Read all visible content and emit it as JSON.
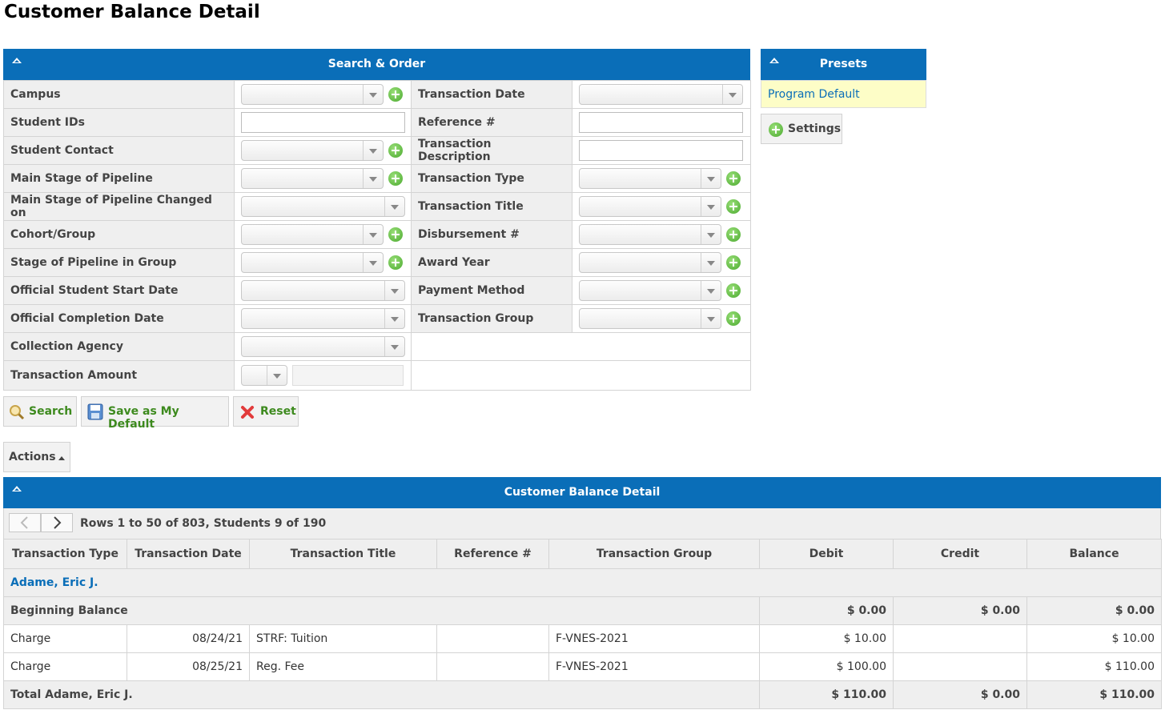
{
  "page": {
    "title": "Customer Balance Detail"
  },
  "search": {
    "header": "Search & Order",
    "left": [
      {
        "label": "Campus",
        "kind": "select-plus"
      },
      {
        "label": "Student IDs",
        "kind": "text"
      },
      {
        "label": "Student Contact",
        "kind": "select-plus"
      },
      {
        "label": "Main Stage of Pipeline",
        "kind": "select-plus"
      },
      {
        "label": "Main Stage of Pipeline Changed on",
        "kind": "select"
      },
      {
        "label": "Cohort/Group",
        "kind": "select-plus"
      },
      {
        "label": "Stage of Pipeline in Group",
        "kind": "select-plus"
      },
      {
        "label": "Official Student Start Date",
        "kind": "select"
      },
      {
        "label": "Official Completion Date",
        "kind": "select"
      },
      {
        "label": "Collection Agency",
        "kind": "select"
      },
      {
        "label": "Transaction Amount",
        "kind": "amount"
      }
    ],
    "right": [
      {
        "label": "Transaction Date",
        "kind": "select"
      },
      {
        "label": "Reference #",
        "kind": "text"
      },
      {
        "label": "Transaction Description",
        "kind": "text"
      },
      {
        "label": "Transaction Type",
        "kind": "select-plus"
      },
      {
        "label": "Transaction Title",
        "kind": "select-plus"
      },
      {
        "label": "Disbursement #",
        "kind": "select-plus"
      },
      {
        "label": "Award Year",
        "kind": "select-plus"
      },
      {
        "label": "Payment Method",
        "kind": "select-plus"
      },
      {
        "label": "Transaction Group",
        "kind": "select-plus"
      }
    ],
    "buttons": {
      "search": "Search",
      "save_default": "Save as My Default",
      "reset": "Reset"
    }
  },
  "presets": {
    "header": "Presets",
    "item": "Program Default",
    "settings": "Settings"
  },
  "actions": {
    "label": "Actions"
  },
  "results": {
    "header": "Customer Balance Detail",
    "pager_text": "Rows 1 to 50 of 803, Students 9 of 190",
    "columns": [
      "Transaction Type",
      "Transaction Date",
      "Transaction Title",
      "Reference #",
      "Transaction Group",
      "Debit",
      "Credit",
      "Balance"
    ],
    "student_name": "Adame, Eric J.",
    "beginning": {
      "label": "Beginning Balance",
      "debit": "$ 0.00",
      "credit": "$ 0.00",
      "balance": "$ 0.00"
    },
    "rows": [
      {
        "type": "Charge",
        "date": "08/24/21",
        "title": "STRF: Tuition",
        "ref": "",
        "group": "F-VNES-2021",
        "debit": "$ 10.00",
        "credit": "",
        "balance": "$ 10.00"
      },
      {
        "type": "Charge",
        "date": "08/25/21",
        "title": "Reg. Fee",
        "ref": "",
        "group": "F-VNES-2021",
        "debit": "$ 100.00",
        "credit": "",
        "balance": "$ 110.00"
      }
    ],
    "total": {
      "label": "Total Adame, Eric J.",
      "debit": "$ 110.00",
      "credit": "$ 0.00",
      "balance": "$ 110.00"
    }
  }
}
